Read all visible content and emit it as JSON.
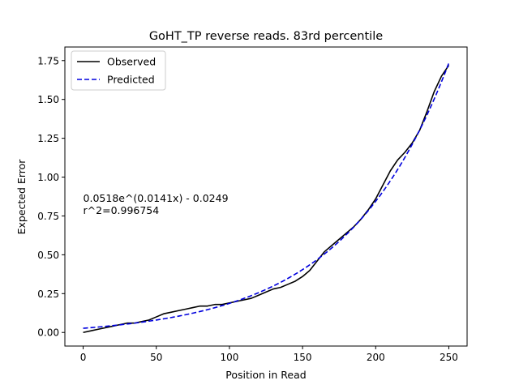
{
  "chart_data": {
    "type": "line",
    "title": "GoHT_TP reverse reads. 83rd percentile",
    "xlabel": "Position in Read",
    "ylabel": "Expected Error",
    "xlim": [
      -12.5,
      262.5
    ],
    "ylim": [
      -0.0875,
      1.8375
    ],
    "xticks": [
      0,
      50,
      100,
      150,
      200,
      250
    ],
    "xtick_labels": [
      "0",
      "50",
      "100",
      "150",
      "200",
      "250"
    ],
    "yticks": [
      0.0,
      0.25,
      0.5,
      0.75,
      1.0,
      1.25,
      1.5,
      1.75
    ],
    "ytick_labels": [
      "0.00",
      "0.25",
      "0.50",
      "0.75",
      "1.00",
      "1.25",
      "1.50",
      "1.75"
    ],
    "grid": false,
    "legend_position": "top-left",
    "annotation": {
      "line1": "0.0518e^(0.0141x) - 0.0249",
      "line2": "r^2=0.996754",
      "x": 0,
      "y": 0.84
    },
    "series": [
      {
        "name": "Observed",
        "color": "#000000",
        "style": "solid",
        "x": [
          0,
          5,
          10,
          15,
          20,
          25,
          30,
          35,
          40,
          45,
          50,
          55,
          60,
          65,
          70,
          75,
          80,
          85,
          90,
          95,
          100,
          105,
          110,
          115,
          120,
          125,
          130,
          135,
          140,
          145,
          150,
          155,
          160,
          165,
          170,
          175,
          180,
          185,
          190,
          195,
          200,
          205,
          210,
          215,
          220,
          225,
          230,
          235,
          240,
          245,
          250
        ],
        "y": [
          0.0,
          0.01,
          0.02,
          0.03,
          0.04,
          0.05,
          0.06,
          0.06,
          0.07,
          0.08,
          0.1,
          0.12,
          0.13,
          0.14,
          0.15,
          0.16,
          0.17,
          0.17,
          0.18,
          0.18,
          0.19,
          0.2,
          0.21,
          0.22,
          0.24,
          0.26,
          0.28,
          0.29,
          0.31,
          0.33,
          0.36,
          0.4,
          0.46,
          0.52,
          0.56,
          0.6,
          0.64,
          0.68,
          0.73,
          0.79,
          0.86,
          0.95,
          1.04,
          1.11,
          1.16,
          1.22,
          1.3,
          1.42,
          1.55,
          1.65,
          1.72
        ]
      },
      {
        "name": "Predicted",
        "color": "#0000dd",
        "style": "dashed",
        "a": 0.0518,
        "b": 0.0141,
        "c": -0.0249,
        "x_range": [
          0,
          250
        ]
      }
    ]
  }
}
